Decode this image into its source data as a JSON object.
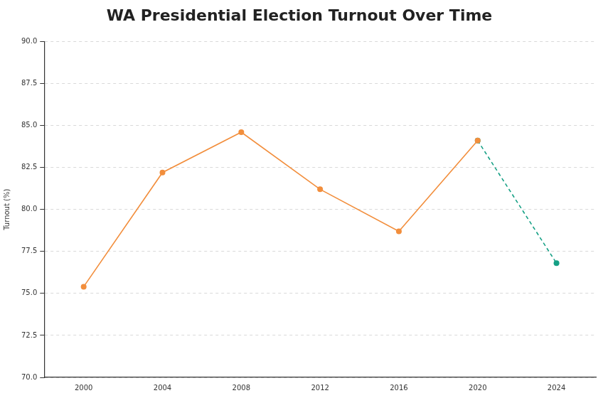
{
  "chart_data": {
    "type": "line",
    "title": "WA Presidential Election Turnout Over Time",
    "y_label": "Turnout (%)",
    "categories": [
      "2000",
      "2004",
      "2008",
      "2012",
      "2016",
      "2020",
      "2024"
    ],
    "series": [
      {
        "color": "#f28e3c",
        "marker": "circle",
        "line_style": "solid",
        "values": [
          75.4,
          82.2,
          84.6,
          81.2,
          78.7,
          84.1,
          null
        ]
      },
      {
        "color": "#16a085",
        "marker": "circle",
        "line_style": "dashed",
        "values": [
          null,
          null,
          null,
          null,
          null,
          84.1,
          76.8
        ]
      }
    ],
    "ylim": [
      70,
      90
    ],
    "yticks": [
      {
        "value": 70,
        "label": "70.0"
      },
      72.5,
      {
        "value": 75,
        "label": "75.0"
      },
      77.5,
      {
        "value": 80,
        "label": "80.0"
      },
      82.5,
      {
        "value": 85,
        "label": "85.0"
      },
      87.5,
      {
        "value": 90,
        "label": "90.0"
      }
    ],
    "grid": true
  }
}
